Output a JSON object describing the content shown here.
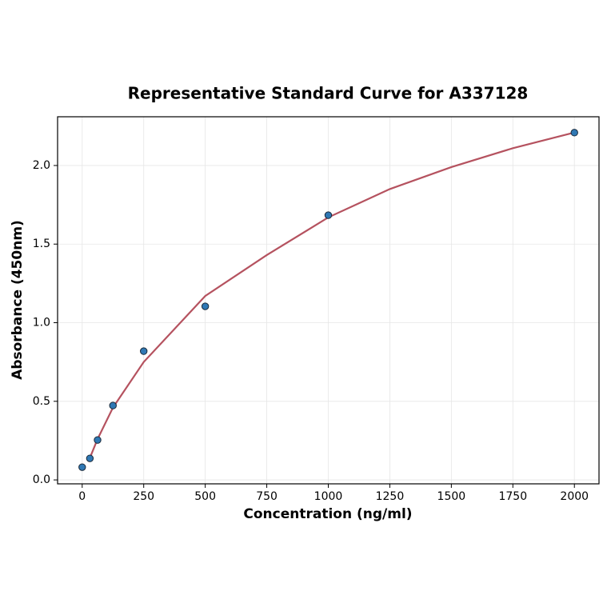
{
  "chart_data": {
    "type": "scatter",
    "title": "Representative Standard Curve for A337128",
    "x_label": "Concentration (ng/ml)",
    "y_label": "Absorbance (450nm)",
    "xlim": [
      -100,
      2100
    ],
    "ylim": [
      -0.025,
      2.31
    ],
    "xticks": [
      0,
      250,
      500,
      750,
      1000,
      1250,
      1500,
      1750,
      2000
    ],
    "yticks": [
      {
        "value": 0,
        "label": "0.0"
      },
      0.5,
      {
        "value": 1,
        "label": "1.0"
      },
      1.5,
      {
        "value": 2,
        "label": "2.0"
      }
    ],
    "grid": true,
    "series": [
      {
        "type": "line",
        "color": "#b5525f",
        "x": [
          31.25,
          62.5,
          125,
          250,
          500,
          750,
          1000,
          1250,
          1500,
          1750,
          2000
        ],
        "values": [
          0.14,
          0.26,
          0.46,
          0.75,
          1.17,
          1.43,
          1.67,
          1.85,
          1.99,
          2.11,
          2.21
        ]
      },
      {
        "type": "scatter",
        "color": "#2f78b4",
        "x": [
          0,
          31.25,
          62.5,
          125,
          250,
          500,
          1000,
          2000
        ],
        "values": [
          0.081,
          0.137,
          0.254,
          0.473,
          0.819,
          1.104,
          1.684,
          2.209
        ]
      }
    ]
  }
}
